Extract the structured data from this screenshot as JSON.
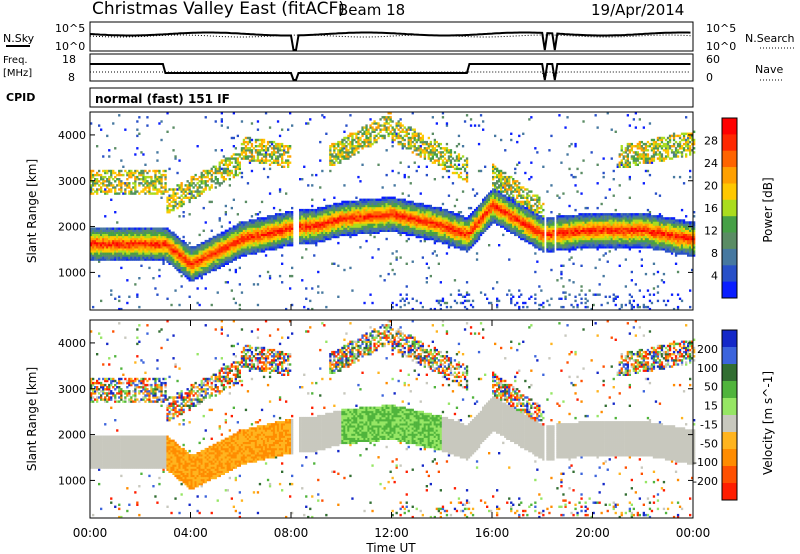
{
  "header": {
    "station": "Christmas Valley East (fitACF)",
    "beam": "Beam 18",
    "date": "19/Apr/2014"
  },
  "strip_labels": {
    "nsky": "N.Sky",
    "nsearch": "N.Search",
    "noise_top": "10^5",
    "noise_bottom": "10^0",
    "freq": "Freq.",
    "freq_unit": "[MHz]",
    "freq_top": "18",
    "freq_bottom": "8",
    "nave": "Nave",
    "nave_top": "60",
    "nave_bottom": "0",
    "cpid": "CPID",
    "cpid_value": "normal (fast) 151 IF"
  },
  "chart_data": [
    {
      "type": "heatmap",
      "title": "Power",
      "ylabel": "Slant Range [km]",
      "yticks": [
        "1000",
        "2000",
        "3000",
        "4000"
      ],
      "colorbar_label": "Power [dB]",
      "colorbar_ticks": [
        "4",
        "8",
        "12",
        "16",
        "20",
        "24",
        "28"
      ],
      "colors": [
        "#0a1eff",
        "#2850c8",
        "#4678a0",
        "#5a8c64",
        "#46a046",
        "#aadc1e",
        "#ffc800",
        "#ffa000",
        "#ff6400",
        "#ff2800",
        "#ff0000"
      ],
      "ylim": [
        180,
        4500
      ],
      "xlim": [
        0,
        24
      ],
      "echo_bands": [
        {
          "x": [
            0,
            3,
            4,
            6,
            8,
            9,
            10,
            12,
            14,
            15,
            16,
            18,
            20,
            22,
            24
          ],
          "center_km": [
            1600,
            1600,
            1150,
            1700,
            1950,
            2000,
            2150,
            2250,
            2000,
            1800,
            2450,
            1800,
            1900,
            1900,
            1700
          ]
        }
      ]
    },
    {
      "type": "heatmap",
      "title": "Velocity",
      "ylabel": "Slant Range [km]",
      "yticks": [
        "1000",
        "2000",
        "3000",
        "4000"
      ],
      "colorbar_label": "Velocity [m s^-1]",
      "colorbar_ticks": [
        "200",
        "100",
        "50",
        "15",
        "-15",
        "-50",
        "-100",
        "-200"
      ],
      "colors": [
        "#1428c8",
        "#3c64dc",
        "#326e32",
        "#50b43c",
        "#96e664",
        "#c8c8be",
        "#ffb41e",
        "#ff8c00",
        "#ff5000",
        "#ff1e00"
      ],
      "ylim": [
        180,
        4500
      ],
      "xlim": [
        0,
        24
      ]
    }
  ],
  "x_axis": {
    "label": "Time UT",
    "ticks": [
      "00:00",
      "04:00",
      "08:00",
      "12:00",
      "16:00",
      "20:00",
      "00:00"
    ]
  }
}
